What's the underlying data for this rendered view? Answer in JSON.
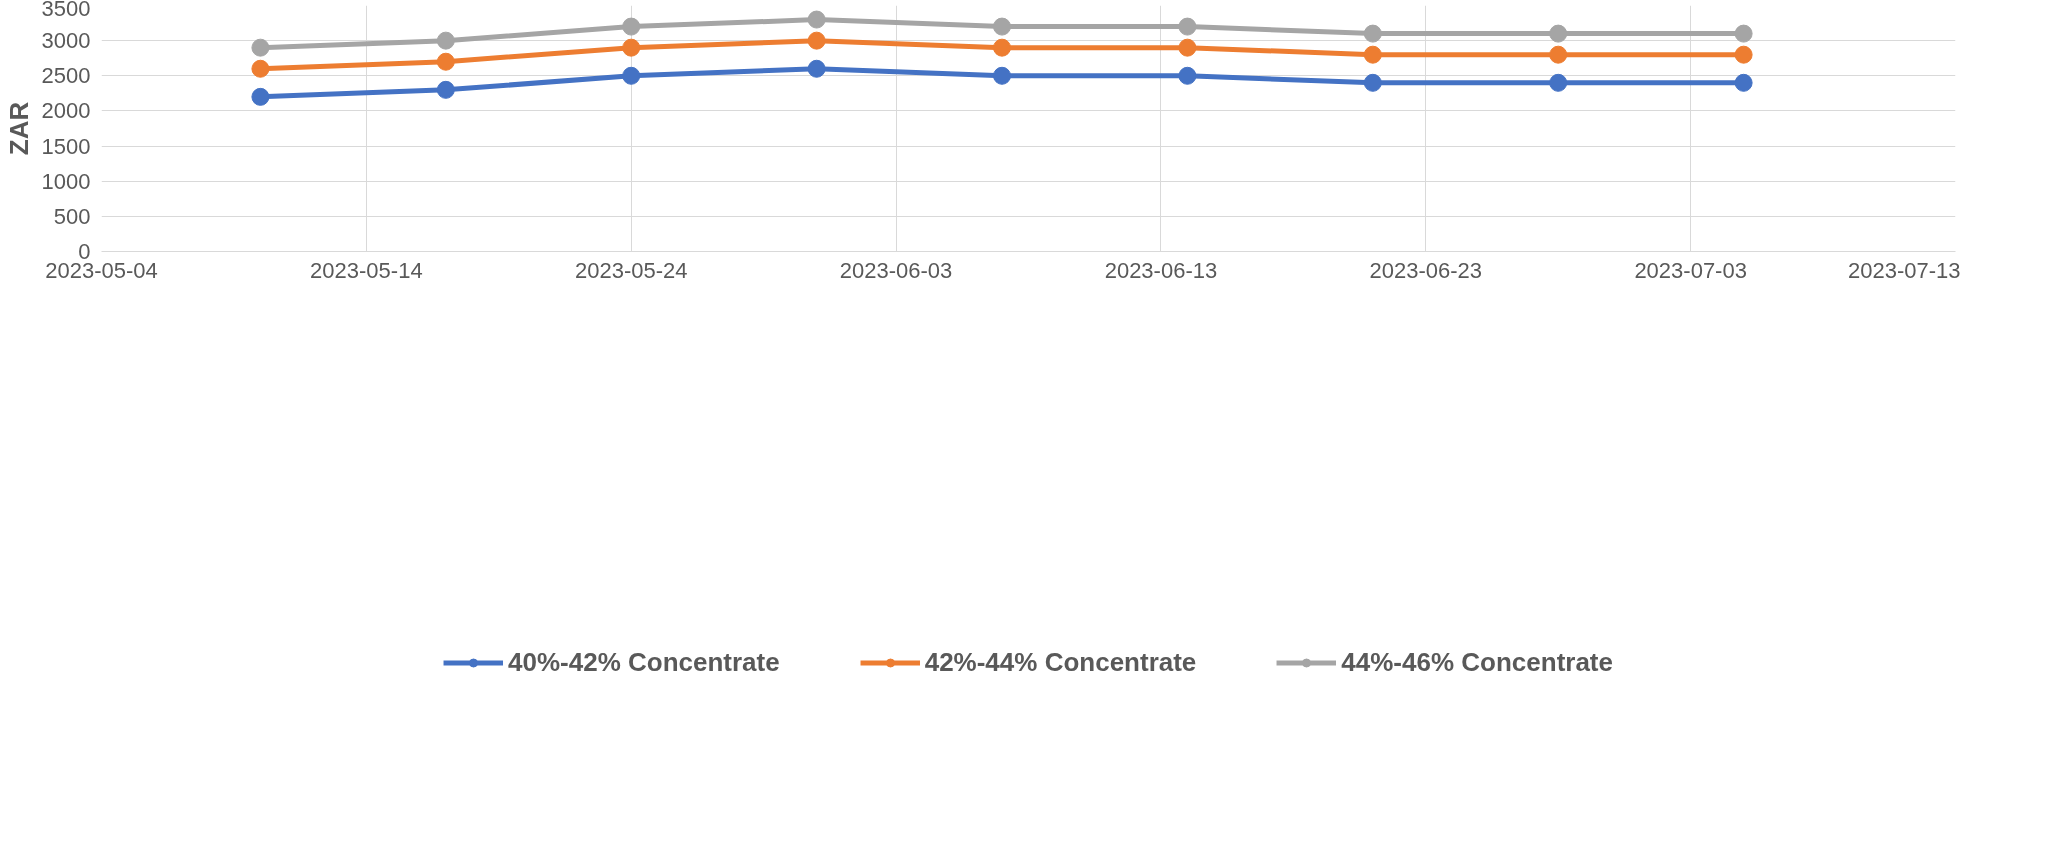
{
  "chart_data": {
    "type": "line",
    "ylabel": "ZAR",
    "x": [
      "2023-05-10",
      "2023-05-17",
      "2023-05-24",
      "2023-05-31",
      "2023-06-07",
      "2023-06-14",
      "2023-06-21",
      "2023-06-28",
      "2023-07-05"
    ],
    "series": [
      {
        "name": "40%-42% Concentrate",
        "color": "#4472c4",
        "values": [
          2200,
          2300,
          2500,
          2600,
          2500,
          2500,
          2400,
          2400,
          2400
        ]
      },
      {
        "name": "42%-44% Concentrate",
        "color": "#ed7d31",
        "values": [
          2600,
          2700,
          2900,
          3000,
          2900,
          2900,
          2800,
          2800,
          2800
        ]
      },
      {
        "name": "44%-46% Concentrate",
        "color": "#a5a5a5",
        "values": [
          2900,
          3000,
          3200,
          3300,
          3200,
          3200,
          3100,
          3100,
          3100
        ]
      }
    ],
    "xlim": [
      "2023-05-04",
      "2023-07-13"
    ],
    "xticks": [
      "2023-05-04",
      "2023-05-14",
      "2023-05-24",
      "2023-06-03",
      "2023-06-13",
      "2023-06-23",
      "2023-07-03",
      "2023-07-13"
    ],
    "ylim": [
      0,
      3500
    ],
    "yticks": [
      0,
      500,
      1000,
      1500,
      2000,
      2500,
      3000,
      3500
    ],
    "grid": true,
    "legend": "bottom",
    "marker": "circle",
    "line_style": "solid"
  }
}
